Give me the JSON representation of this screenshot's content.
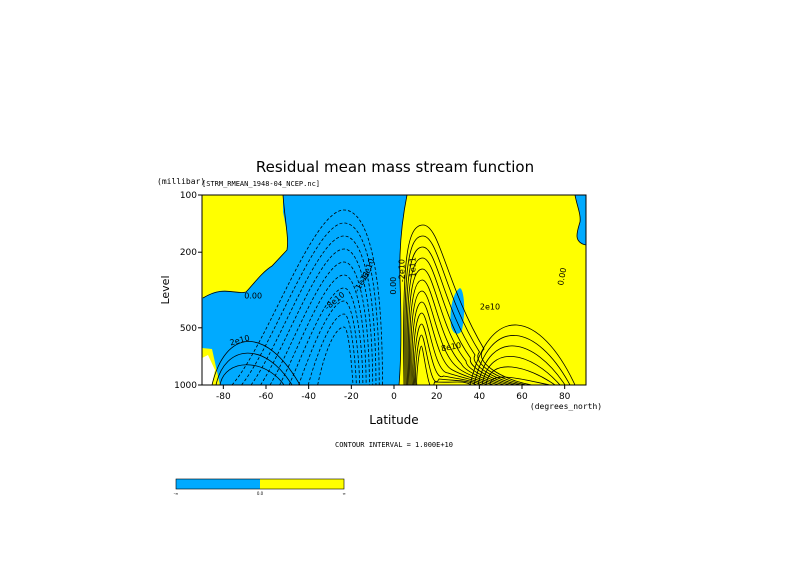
{
  "chart_data": {
    "type": "contour",
    "title": "Residual mean mass stream function",
    "subtitle": "[STRM_RMEAN_1948-04_NCEP.nc]",
    "xlabel": "Latitude",
    "xunits": "(degrees_north)",
    "ylabel": "Level",
    "yunits": "(millibar)",
    "xlim": [
      -90,
      90
    ],
    "ylim": [
      1000,
      100
    ],
    "y_scale": "log",
    "x_ticks": [
      -80,
      -60,
      -40,
      -20,
      0,
      20,
      40,
      60,
      80
    ],
    "y_ticks": [
      100,
      200,
      500,
      1000
    ],
    "contour_interval_text": "CONTOUR INTERVAL = 1.000E+10",
    "contour_labels": [
      {
        "text": "0.00",
        "x": -66,
        "y": 350,
        "rot": 0
      },
      {
        "text": "2e10",
        "x": -72,
        "y": 600,
        "rot": -15
      },
      {
        "text": "-8e10",
        "x": -27,
        "y": 370,
        "rot": -40
      },
      {
        "text": "-1e11",
        "x": -14,
        "y": 290,
        "rot": -60
      },
      {
        "text": "-6e10",
        "x": -11,
        "y": 250,
        "rot": -70
      },
      {
        "text": "0.00",
        "x": 1,
        "y": 300,
        "rot": -90
      },
      {
        "text": "-2e10",
        "x": 5,
        "y": 250,
        "rot": -90
      },
      {
        "text": "1e11",
        "x": 10,
        "y": 240,
        "rot": -90
      },
      {
        "text": "2e10",
        "x": 45,
        "y": 400,
        "rot": 0
      },
      {
        "text": "8e10",
        "x": 27,
        "y": 650,
        "rot": -10
      },
      {
        "text": "0.00",
        "x": 80,
        "y": 270,
        "rot": -80
      }
    ],
    "fill_colors": {
      "negative": "#00aaff",
      "positive": "#ffff00"
    },
    "colorbar_labels": [
      "-∞",
      "0.0",
      "∞"
    ]
  }
}
